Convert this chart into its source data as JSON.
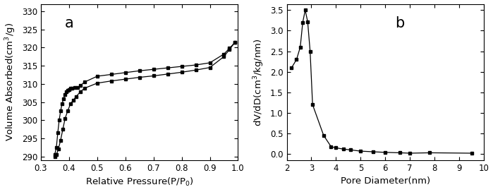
{
  "plot_a": {
    "label": "a",
    "xlabel": "Relative Pressure(P/P$_0$)",
    "ylabel": "Volume Absorbed(cm$^3$/g)",
    "xlim": [
      0.3,
      1.0
    ],
    "ylim": [
      289,
      332
    ],
    "yticks": [
      290,
      295,
      300,
      305,
      310,
      315,
      320,
      325,
      330
    ],
    "xticks": [
      0.3,
      0.4,
      0.5,
      0.6,
      0.7,
      0.8,
      0.9,
      1.0
    ],
    "adsorption_x": [
      0.349,
      0.355,
      0.362,
      0.37,
      0.378,
      0.386,
      0.395,
      0.405,
      0.415,
      0.425,
      0.44,
      0.455,
      0.5,
      0.55,
      0.6,
      0.65,
      0.7,
      0.75,
      0.8,
      0.85,
      0.9,
      0.95,
      0.97,
      0.99
    ],
    "adsorption_y": [
      290.0,
      290.5,
      292.0,
      294.5,
      297.5,
      300.5,
      302.5,
      304.5,
      305.5,
      306.5,
      307.8,
      308.8,
      310.2,
      310.8,
      311.3,
      311.8,
      312.2,
      312.7,
      313.2,
      313.8,
      314.5,
      317.5,
      319.5,
      321.5
    ],
    "desorption_x": [
      0.99,
      0.97,
      0.95,
      0.9,
      0.85,
      0.8,
      0.75,
      0.7,
      0.65,
      0.6,
      0.55,
      0.5,
      0.455,
      0.44,
      0.43,
      0.42,
      0.41,
      0.405,
      0.4,
      0.395,
      0.39,
      0.385,
      0.38,
      0.375,
      0.37,
      0.365,
      0.36,
      0.355,
      0.349
    ],
    "desorption_y": [
      321.5,
      319.8,
      318.2,
      315.8,
      315.2,
      314.8,
      314.4,
      314.0,
      313.6,
      313.1,
      312.6,
      312.1,
      310.5,
      309.5,
      309.0,
      309.0,
      308.8,
      308.8,
      308.5,
      308.2,
      307.8,
      307.0,
      305.8,
      304.5,
      302.5,
      300.0,
      296.5,
      292.5,
      290.5
    ]
  },
  "plot_b": {
    "label": "b",
    "xlabel": "Pore Diameter(nm)",
    "ylabel": "dV/dD(cm$^3$/kg/nm)",
    "xlim": [
      2,
      10
    ],
    "ylim": [
      -0.15,
      3.65
    ],
    "yticks": [
      0.0,
      0.5,
      1.0,
      1.5,
      2.0,
      2.5,
      3.0,
      3.5
    ],
    "xticks": [
      2,
      3,
      4,
      5,
      6,
      7,
      8,
      9,
      10
    ],
    "x": [
      2.2,
      2.4,
      2.55,
      2.65,
      2.75,
      2.85,
      2.95,
      3.05,
      3.5,
      3.8,
      4.0,
      4.3,
      4.6,
      5.0,
      5.5,
      6.0,
      6.6,
      7.0,
      7.8,
      9.5
    ],
    "y": [
      2.1,
      2.3,
      2.6,
      3.2,
      3.5,
      3.22,
      2.5,
      1.2,
      0.45,
      0.18,
      0.15,
      0.12,
      0.1,
      0.07,
      0.055,
      0.04,
      0.03,
      0.02,
      0.03,
      0.02
    ]
  },
  "line_color": "#000000",
  "marker": "s",
  "markersize": 3.5,
  "bg_color": "#ffffff",
  "label_fontsize": 9.5,
  "tick_fontsize": 8.5,
  "panel_label_fontsize": 15
}
